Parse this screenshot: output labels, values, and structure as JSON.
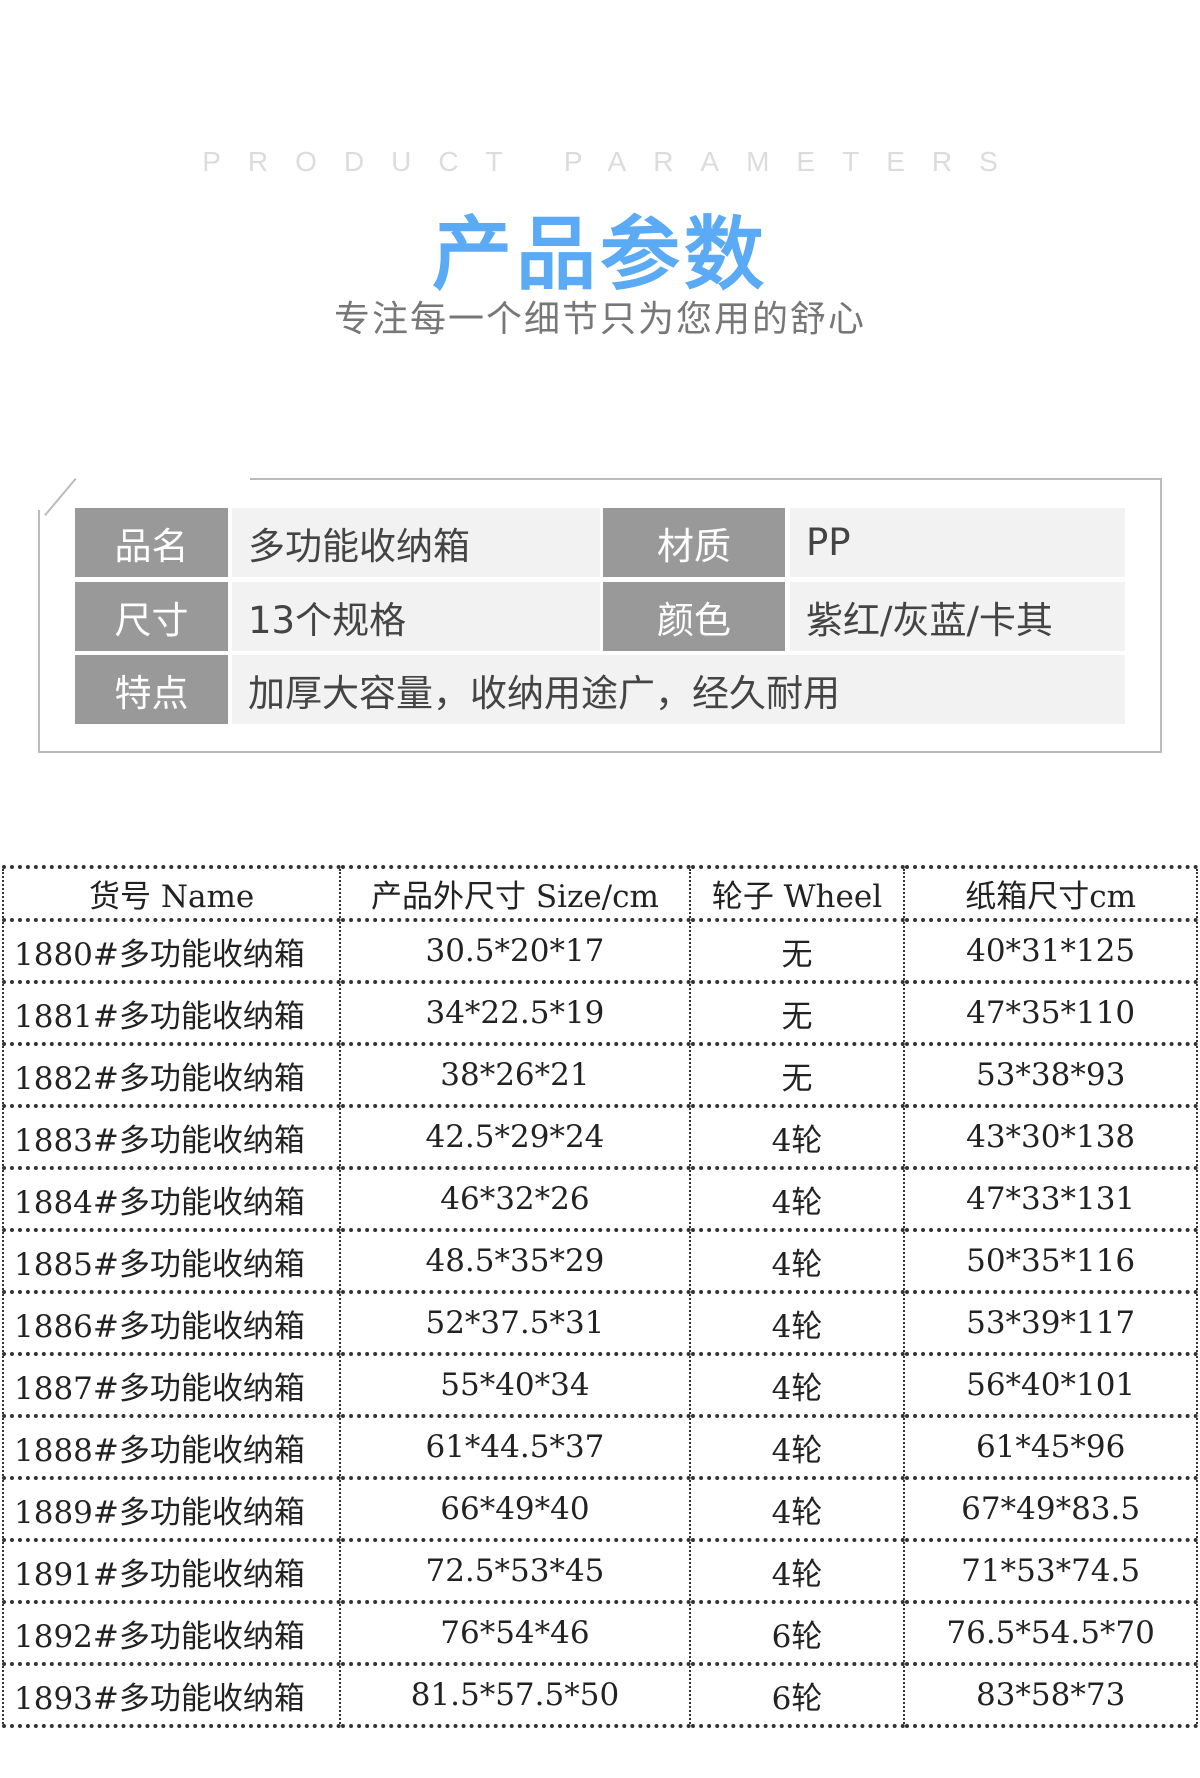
{
  "header": {
    "en_title": "PRODUCT PARAMETERS",
    "title": "产品参数",
    "subtitle": "专注每一个细节只为您用的舒心",
    "title_color": "#5aaaf5"
  },
  "params": {
    "name_label": "品名",
    "name_value": "多功能收纳箱",
    "material_label": "材质",
    "material_value": "PP",
    "size_label": "尺寸",
    "size_value": "13个规格",
    "color_label": "颜色",
    "color_value": "紫红/灰蓝/卡其",
    "feature_label": "特点",
    "feature_value": "加厚大容量，收纳用途广，经久耐用"
  },
  "table": {
    "headers": [
      "货号 Name",
      "产品外尺寸 Size/cm",
      "轮子 Wheel",
      "纸箱尺寸cm"
    ],
    "rows": [
      [
        "1880#多功能收纳箱",
        "30.5*20*17",
        "无",
        "40*31*125"
      ],
      [
        "1881#多功能收纳箱",
        "34*22.5*19",
        "无",
        "47*35*110"
      ],
      [
        "1882#多功能收纳箱",
        "38*26*21",
        "无",
        "53*38*93"
      ],
      [
        "1883#多功能收纳箱",
        "42.5*29*24",
        "4轮",
        "43*30*138"
      ],
      [
        "1884#多功能收纳箱",
        "46*32*26",
        "4轮",
        "47*33*131"
      ],
      [
        "1885#多功能收纳箱",
        "48.5*35*29",
        "4轮",
        "50*35*116"
      ],
      [
        "1886#多功能收纳箱",
        "52*37.5*31",
        "4轮",
        "53*39*117"
      ],
      [
        "1887#多功能收纳箱",
        "55*40*34",
        "4轮",
        "56*40*101"
      ],
      [
        "1888#多功能收纳箱",
        "61*44.5*37",
        "4轮",
        "61*45*96"
      ],
      [
        "1889#多功能收纳箱",
        "66*49*40",
        "4轮",
        "67*49*83.5"
      ],
      [
        "1891#多功能收纳箱",
        "72.5*53*45",
        "4轮",
        "71*53*74.5"
      ],
      [
        "1892#多功能收纳箱",
        "76*54*46",
        "6轮",
        "76.5*54.5*70"
      ],
      [
        "1893#多功能收纳箱",
        "81.5*57.5*50",
        "6轮",
        "83*58*73"
      ]
    ]
  }
}
